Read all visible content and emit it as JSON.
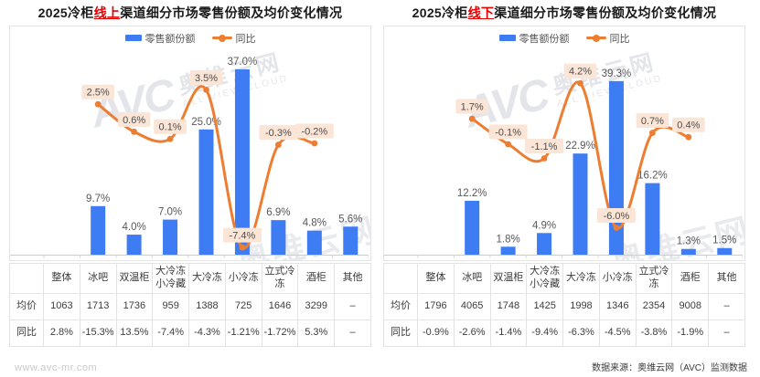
{
  "page": {
    "watermark_url": "www.avc-mr.com",
    "source_note": "数据来源：奥维云网（AVC）监测数据",
    "watermark_avc": "AVC",
    "watermark_brand": "奥维云网",
    "watermark_sub": "ALL VIEW CLOUD"
  },
  "colors": {
    "bar": "#3E7CF4",
    "line": "#ED7D31",
    "label_bg": "#FBE5D6",
    "label_text": "#4D4D4D",
    "bar_label_text": "#595959",
    "highlight": "#E60000",
    "axis": "#CCCCCC",
    "border": "#E3E3E3"
  },
  "panels": [
    {
      "title_prefix": "2025冷柜",
      "title_highlight": "线上",
      "title_suffix": "渠道细分市场零售份额及均价变化情况",
      "legend": [
        {
          "label": "零售额份额"
        },
        {
          "label": "同比"
        }
      ],
      "table": {
        "corner": "",
        "columns": [
          "整体",
          "冰吧",
          "双温柜",
          "大冷冻小冷藏",
          "大冷冻",
          "小冷冻",
          "立式冷冻",
          "酒柜",
          "其他"
        ],
        "row_headers": [
          "均价",
          "同比"
        ],
        "rows": [
          [
            "1063",
            "1713",
            "1736",
            "959",
            "1388",
            "725",
            "1646",
            "3299",
            "–"
          ],
          [
            "2.8%",
            "-15.3%",
            "13.5%",
            "-7.4%",
            "-4.3%",
            "-1.21%",
            "-1.72%",
            "5.3%",
            "–"
          ]
        ]
      }
    },
    {
      "title_prefix": "2025冷柜",
      "title_highlight": "线下",
      "title_suffix": "渠道细分市场零售份额及均价变化情况",
      "legend": [
        {
          "label": "零售额份额"
        },
        {
          "label": "同比"
        }
      ],
      "table": {
        "corner": "",
        "columns": [
          "整体",
          "冰吧",
          "双温柜",
          "大冷冻小冷藏",
          "大冷冻",
          "小冷冻",
          "立式冷冻",
          "酒柜",
          "其他"
        ],
        "row_headers": [
          "均价",
          "同比"
        ],
        "rows": [
          [
            "1796",
            "4065",
            "1748",
            "1425",
            "1998",
            "1346",
            "2354",
            "9008",
            "–"
          ],
          [
            "-0.9%",
            "-2.6%",
            "-1.4%",
            "-9.4%",
            "-6.3%",
            "-4.5%",
            "-3.8%",
            "-1.9%",
            "–"
          ]
        ]
      }
    }
  ],
  "chart_data": [
    {
      "type": "bar+line",
      "title": "2025冷柜线上渠道细分市场零售份额及均价变化情况",
      "categories": [
        "整体",
        "冰吧",
        "双温柜",
        "大冷冻小冷藏",
        "大冷冻",
        "小冷冻",
        "立式冷冻",
        "酒柜",
        "其他"
      ],
      "unit": "%",
      "series": [
        {
          "name": "零售额份额",
          "type": "bar",
          "values": [
            null,
            9.7,
            4.0,
            7.0,
            25.0,
            37.0,
            6.9,
            4.8,
            5.6
          ]
        },
        {
          "name": "同比",
          "type": "line",
          "values": [
            null,
            2.5,
            0.6,
            0.1,
            3.5,
            -7.4,
            -0.3,
            -0.2,
            null
          ]
        }
      ],
      "bar_axis_range": [
        0,
        41
      ],
      "line_axis_range": [
        -7.9,
        6.3
      ],
      "grid": false,
      "legend_position": "top"
    },
    {
      "type": "bar+line",
      "title": "2025冷柜线下渠道细分市场零售份额及均价变化情况",
      "categories": [
        "整体",
        "冰吧",
        "双温柜",
        "大冷冻小冷藏",
        "大冷冻",
        "小冷冻",
        "立式冷冻",
        "酒柜",
        "其他"
      ],
      "unit": "%",
      "series": [
        {
          "name": "零售额份额",
          "type": "bar",
          "values": [
            null,
            12.2,
            1.8,
            4.9,
            22.9,
            39.3,
            16.2,
            1.3,
            1.5
          ]
        },
        {
          "name": "同比",
          "type": "line",
          "values": [
            null,
            1.7,
            -0.1,
            -1.1,
            4.2,
            -6.0,
            0.7,
            0.4,
            null
          ]
        }
      ],
      "bar_axis_range": [
        0,
        46.5
      ],
      "line_axis_range": [
        -7.9,
        6.6
      ],
      "grid": false,
      "legend_position": "top"
    }
  ]
}
